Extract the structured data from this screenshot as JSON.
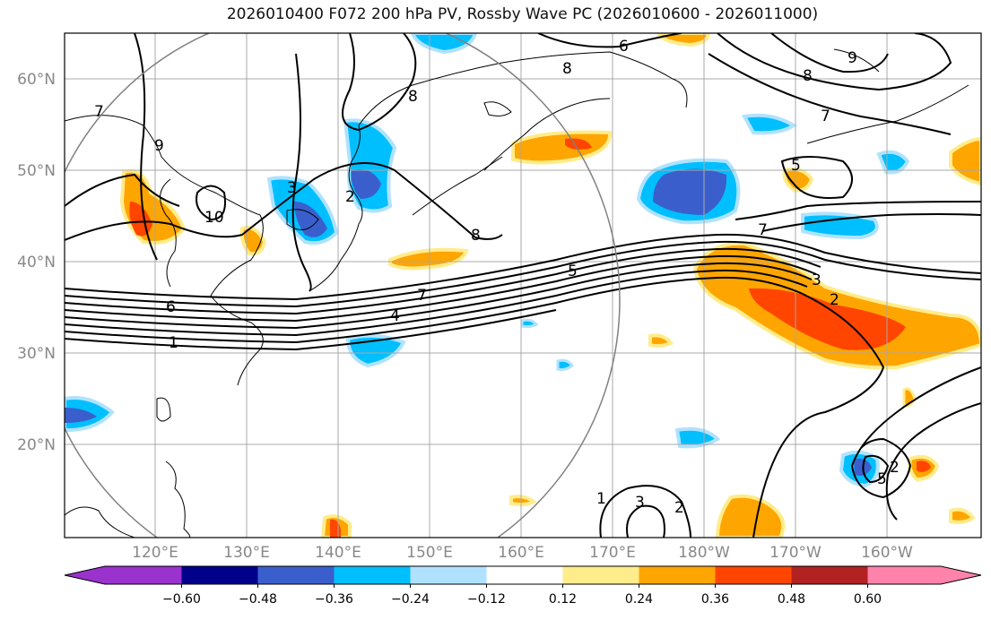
{
  "title": "2026010400 F072 200 hPa PV, Rossby Wave PC (2026010600 - 2026011000)",
  "map": {
    "lat_labels": [
      "60°N",
      "50°N",
      "40°N",
      "30°N",
      "20°N"
    ],
    "lon_labels": [
      "120°E",
      "130°E",
      "140°E",
      "150°E",
      "160°E",
      "170°E",
      "180°W",
      "170°W",
      "160°W"
    ],
    "contour_labels": [
      "6",
      "8",
      "7",
      "9",
      "8",
      "10",
      "8",
      "7",
      "5",
      "6",
      "1",
      "4",
      "3",
      "2",
      "7",
      "5",
      "9",
      "8",
      "7",
      "3",
      "2",
      "5",
      "2",
      "1",
      "3",
      "2"
    ]
  },
  "colorbar": {
    "ticks": [
      "−0.60",
      "−0.48",
      "−0.36",
      "−0.24",
      "−0.12",
      "0.12",
      "0.24",
      "0.36",
      "0.48",
      "0.60"
    ],
    "colors": [
      "#9a32cd",
      "#00008b",
      "#3a5fcd",
      "#00bfff",
      "#b0e2ff",
      "#ffffff",
      "#ffec8b",
      "#ffa500",
      "#ff4500",
      "#b22222",
      "#ff82ab"
    ]
  }
}
